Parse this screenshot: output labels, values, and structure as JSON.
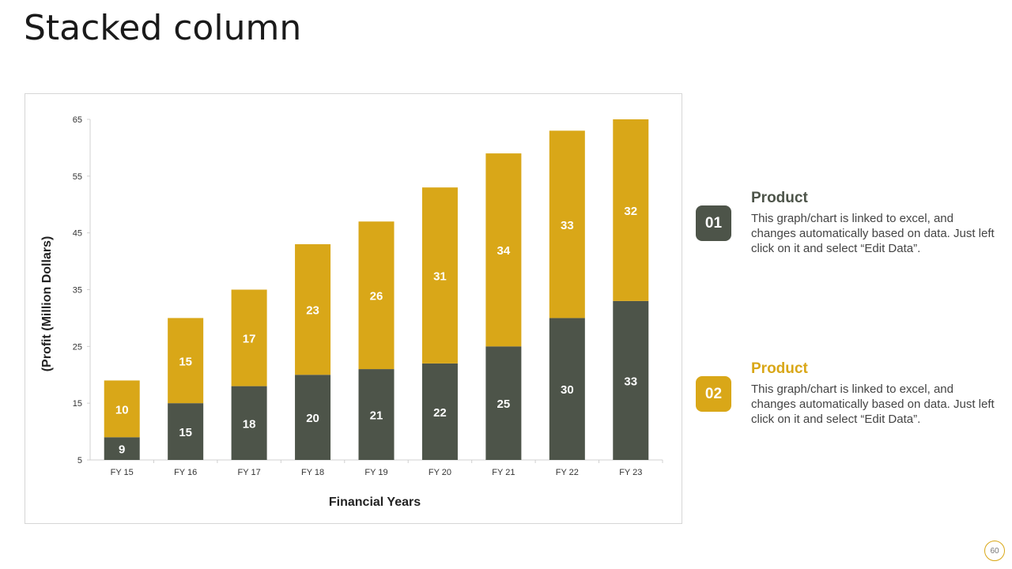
{
  "page": {
    "title": "Stacked column",
    "page_number": "60"
  },
  "colors": {
    "series1": "#4d5449",
    "series2": "#d9a718",
    "axis": "#d0d0d0",
    "tick_text": "#333333"
  },
  "legend": [
    {
      "number": "01",
      "title": "Product",
      "description": "This graph/chart is linked to excel, and changes automatically based on data. Just left click on it and select “Edit Data”.",
      "color": "#4d5449"
    },
    {
      "number": "02",
      "title": "Product",
      "description": "This graph/chart is linked to excel, and changes automatically based on data. Just left click on it and select “Edit Data”.",
      "color": "#d9a718"
    }
  ],
  "chart_data": {
    "type": "bar",
    "stacked": true,
    "title": "",
    "xlabel": "Financial Years",
    "ylabel": "(Profit (Million Dollars)",
    "categories": [
      "FY 15",
      "FY 16",
      "FY 17",
      "FY 18",
      "FY 19",
      "FY 20",
      "FY 21",
      "FY 22",
      "FY 23"
    ],
    "ylim": [
      5,
      65
    ],
    "yticks": [
      5,
      15,
      25,
      35,
      45,
      55,
      65
    ],
    "grid": false,
    "series": [
      {
        "name": "Product 01",
        "values": [
          9,
          15,
          18,
          20,
          21,
          22,
          25,
          30,
          33
        ]
      },
      {
        "name": "Product 02",
        "values": [
          10,
          15,
          17,
          23,
          26,
          31,
          34,
          33,
          32
        ]
      }
    ]
  }
}
